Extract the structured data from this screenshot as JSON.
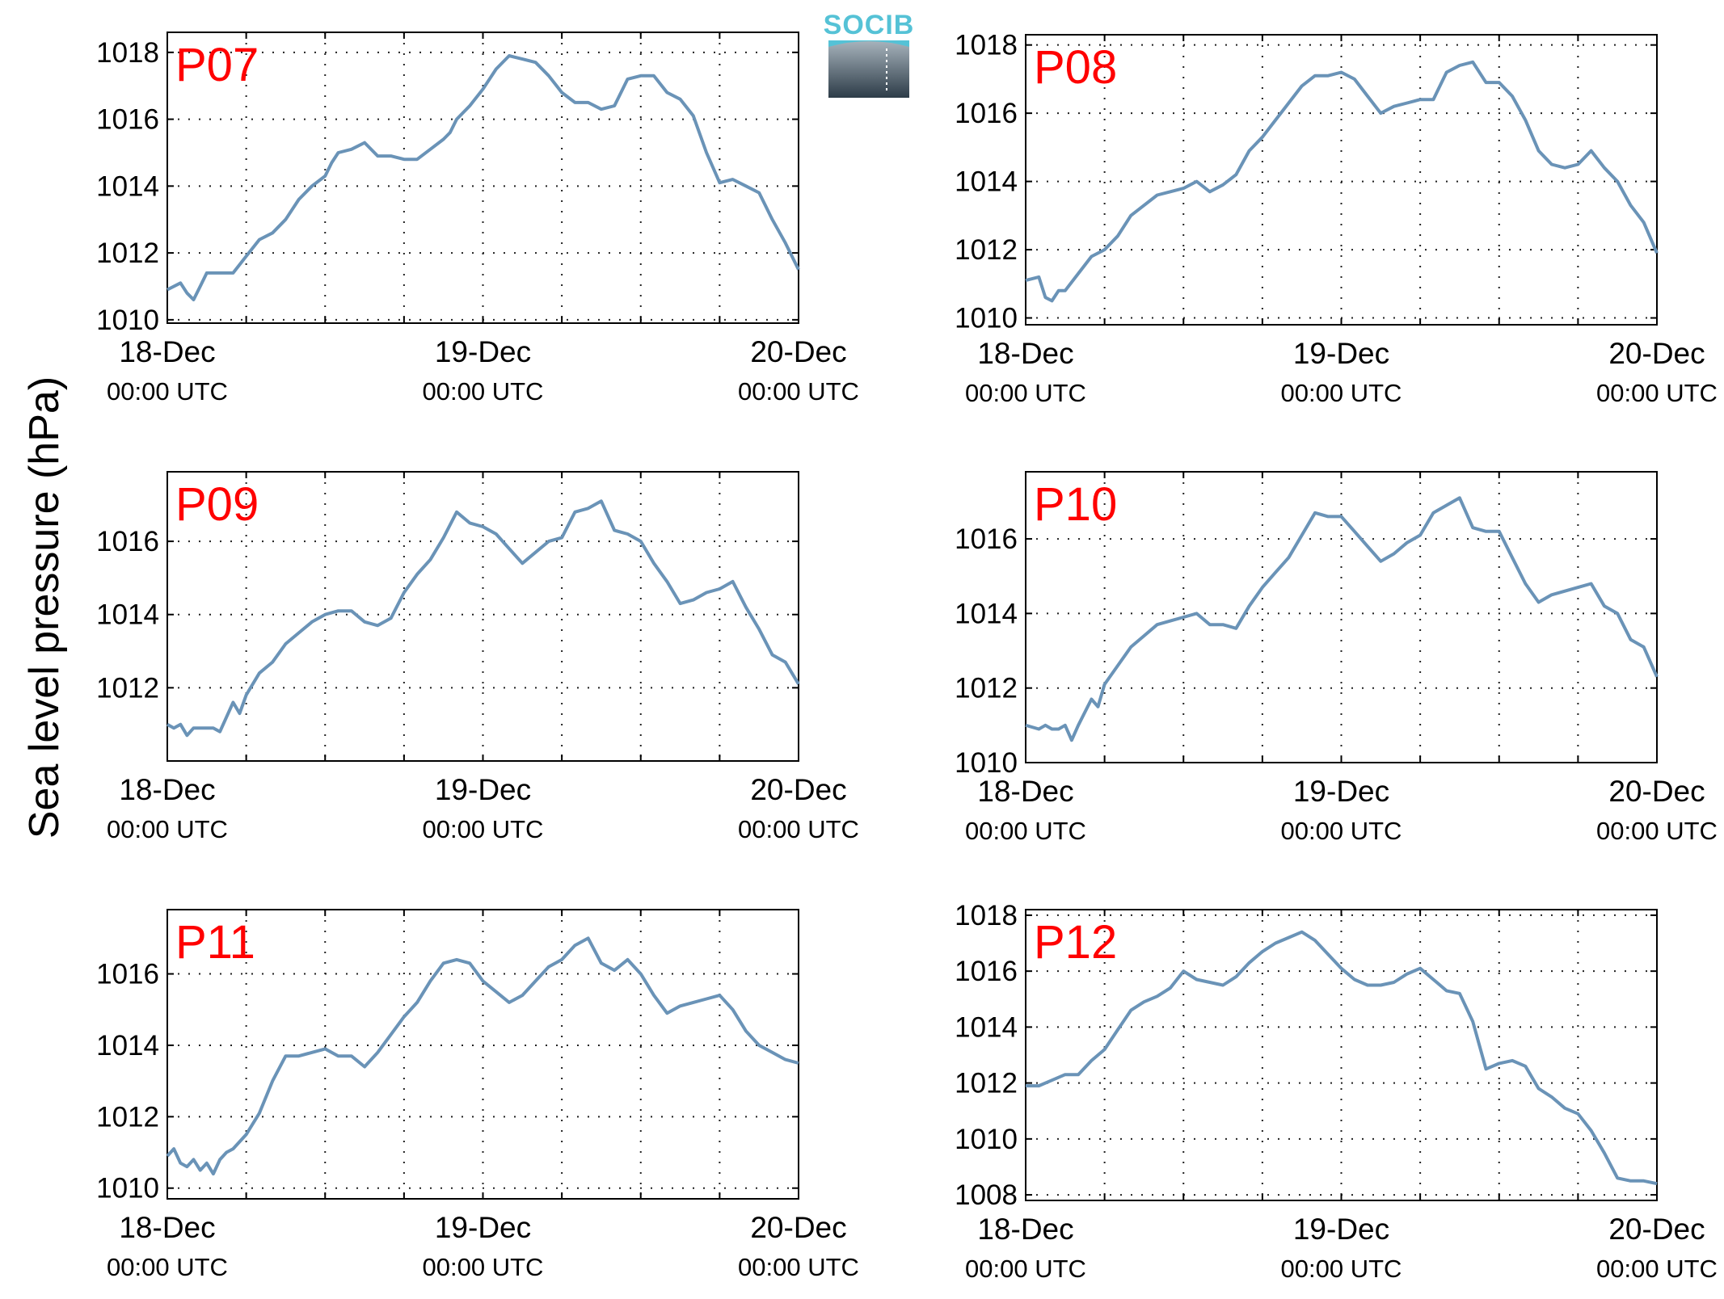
{
  "figure": {
    "ylabel": "Sea level pressure (hPa)",
    "logo_text": "SOCIB"
  },
  "chart_data": [
    {
      "type": "line",
      "title": "P07",
      "xlabel": "",
      "ylabel": "Sea level pressure (hPa)",
      "x_unit": "hours since 18-Dec 00:00 UTC",
      "x_ticks": [
        {
          "date": "18-Dec",
          "time": "00:00 UTC"
        },
        {
          "date": "19-Dec",
          "time": "00:00 UTC"
        },
        {
          "date": "20-Dec",
          "time": "00:00 UTC"
        }
      ],
      "xlim": [
        0,
        48
      ],
      "ylim": [
        1009.9,
        1018.6
      ],
      "yticks": [
        1010,
        1012,
        1014,
        1016,
        1018
      ],
      "grid": true,
      "color": "#6a93b7",
      "series": [
        {
          "x": [
            0,
            1,
            1.5,
            2,
            2.5,
            3,
            4,
            5,
            6,
            7,
            8,
            9,
            10,
            11,
            12,
            12.5,
            13,
            14,
            15,
            16,
            17,
            18,
            19,
            20,
            21,
            21.5,
            22,
            23,
            24,
            25,
            26,
            27,
            28,
            29,
            30,
            31,
            32,
            33,
            34,
            35,
            36,
            37,
            38,
            39,
            40,
            41,
            42,
            43,
            44,
            45,
            46,
            47,
            48
          ],
          "y": [
            1010.9,
            1011.1,
            1010.8,
            1010.6,
            1011.0,
            1011.4,
            1011.4,
            1011.4,
            1011.9,
            1012.4,
            1012.6,
            1013.0,
            1013.6,
            1014.0,
            1014.3,
            1014.7,
            1015.0,
            1015.1,
            1015.3,
            1014.9,
            1014.9,
            1014.8,
            1014.8,
            1015.1,
            1015.4,
            1015.6,
            1016.0,
            1016.4,
            1016.9,
            1017.5,
            1017.9,
            1017.8,
            1017.7,
            1017.3,
            1016.8,
            1016.5,
            1016.5,
            1016.3,
            1016.4,
            1017.2,
            1017.3,
            1017.3,
            1016.8,
            1016.6,
            1016.1,
            1015.0,
            1014.1,
            1014.2,
            1014.0,
            1013.8,
            1013.0,
            1012.3,
            1011.5
          ]
        }
      ]
    },
    {
      "type": "line",
      "title": "P08",
      "xlabel": "",
      "ylabel": "Sea level pressure (hPa)",
      "x_unit": "hours since 18-Dec 00:00 UTC",
      "x_ticks": [
        {
          "date": "18-Dec",
          "time": "00:00 UTC"
        },
        {
          "date": "19-Dec",
          "time": "00:00 UTC"
        },
        {
          "date": "20-Dec",
          "time": "00:00 UTC"
        }
      ],
      "xlim": [
        0,
        48
      ],
      "ylim": [
        1009.8,
        1018.3
      ],
      "yticks": [
        1010,
        1012,
        1014,
        1016,
        1018
      ],
      "grid": true,
      "color": "#6a93b7",
      "series": [
        {
          "x": [
            0,
            1,
            1.5,
            2,
            2.5,
            3,
            4,
            5,
            6,
            7,
            8,
            9,
            10,
            11,
            12,
            13,
            14,
            15,
            16,
            17,
            18,
            19,
            20,
            21,
            22,
            23,
            24,
            25,
            26,
            27,
            28,
            29,
            30,
            31,
            32,
            33,
            34,
            35,
            36,
            37,
            38,
            39,
            40,
            41,
            42,
            43,
            44,
            45,
            46,
            47,
            48
          ],
          "y": [
            1011.1,
            1011.2,
            1010.6,
            1010.5,
            1010.8,
            1010.8,
            1011.3,
            1011.8,
            1012.0,
            1012.4,
            1013.0,
            1013.3,
            1013.6,
            1013.7,
            1013.8,
            1014.0,
            1013.7,
            1013.9,
            1014.2,
            1014.9,
            1015.3,
            1015.8,
            1016.3,
            1016.8,
            1017.1,
            1017.1,
            1017.2,
            1017.0,
            1016.5,
            1016.0,
            1016.2,
            1016.3,
            1016.4,
            1016.4,
            1017.2,
            1017.4,
            1017.5,
            1016.9,
            1016.9,
            1016.5,
            1015.8,
            1014.9,
            1014.5,
            1014.4,
            1014.5,
            1014.9,
            1014.4,
            1014.0,
            1013.3,
            1012.8,
            1011.9
          ]
        }
      ]
    },
    {
      "type": "line",
      "title": "P09",
      "xlabel": "",
      "ylabel": "Sea level pressure (hPa)",
      "x_unit": "hours since 18-Dec 00:00 UTC",
      "x_ticks": [
        {
          "date": "18-Dec",
          "time": "00:00 UTC"
        },
        {
          "date": "19-Dec",
          "time": "00:00 UTC"
        },
        {
          "date": "20-Dec",
          "time": "00:00 UTC"
        }
      ],
      "xlim": [
        0,
        48
      ],
      "ylim": [
        1010.0,
        1017.9
      ],
      "yticks": [
        1012,
        1014,
        1016
      ],
      "grid": true,
      "color": "#6a93b7",
      "series": [
        {
          "x": [
            0,
            0.5,
            1,
            1.5,
            2,
            3,
            3.5,
            4,
            5,
            5.5,
            6,
            7,
            8,
            9,
            10,
            11,
            12,
            13,
            14,
            15,
            16,
            17,
            18,
            19,
            20,
            21,
            22,
            23,
            24,
            25,
            26,
            27,
            28,
            29,
            30,
            31,
            32,
            33,
            34,
            35,
            36,
            37,
            38,
            39,
            40,
            41,
            42,
            43,
            44,
            45,
            46,
            47,
            48
          ],
          "y": [
            1011.0,
            1010.9,
            1011.0,
            1010.7,
            1010.9,
            1010.9,
            1010.9,
            1010.8,
            1011.6,
            1011.3,
            1011.8,
            1012.4,
            1012.7,
            1013.2,
            1013.5,
            1013.8,
            1014.0,
            1014.1,
            1014.1,
            1013.8,
            1013.7,
            1013.9,
            1014.6,
            1015.1,
            1015.5,
            1016.1,
            1016.8,
            1016.5,
            1016.4,
            1016.2,
            1015.8,
            1015.4,
            1015.7,
            1016.0,
            1016.1,
            1016.8,
            1016.9,
            1017.1,
            1016.3,
            1016.2,
            1016.0,
            1015.4,
            1014.9,
            1014.3,
            1014.4,
            1014.6,
            1014.7,
            1014.9,
            1014.2,
            1013.6,
            1012.9,
            1012.7,
            1012.1
          ]
        }
      ]
    },
    {
      "type": "line",
      "title": "P10",
      "xlabel": "",
      "ylabel": "Sea level pressure (hPa)",
      "x_unit": "hours since 18-Dec 00:00 UTC",
      "x_ticks": [
        {
          "date": "18-Dec",
          "time": "00:00 UTC"
        },
        {
          "date": "19-Dec",
          "time": "00:00 UTC"
        },
        {
          "date": "20-Dec",
          "time": "00:00 UTC"
        }
      ],
      "xlim": [
        0,
        48
      ],
      "ylim": [
        1010.0,
        1017.8
      ],
      "yticks": [
        1010,
        1012,
        1014,
        1016
      ],
      "grid": true,
      "color": "#6a93b7",
      "series": [
        {
          "x": [
            0,
            1,
            1.5,
            2,
            2.5,
            3,
            3.5,
            4,
            5,
            5.5,
            6,
            7,
            8,
            9,
            10,
            11,
            12,
            13,
            14,
            15,
            16,
            17,
            18,
            19,
            20,
            21,
            22,
            23,
            24,
            25,
            26,
            27,
            28,
            29,
            30,
            31,
            32,
            33,
            34,
            35,
            36,
            37,
            38,
            39,
            40,
            41,
            42,
            43,
            44,
            45,
            46,
            47,
            48
          ],
          "y": [
            1011.0,
            1010.9,
            1011.0,
            1010.9,
            1010.9,
            1011.0,
            1010.6,
            1011.0,
            1011.7,
            1011.5,
            1012.1,
            1012.6,
            1013.1,
            1013.4,
            1013.7,
            1013.8,
            1013.9,
            1014.0,
            1013.7,
            1013.7,
            1013.6,
            1014.2,
            1014.7,
            1015.1,
            1015.5,
            1016.1,
            1016.7,
            1016.6,
            1016.6,
            1016.2,
            1015.8,
            1015.4,
            1015.6,
            1015.9,
            1016.1,
            1016.7,
            1016.9,
            1017.1,
            1016.3,
            1016.2,
            1016.2,
            1015.5,
            1014.8,
            1014.3,
            1014.5,
            1014.6,
            1014.7,
            1014.8,
            1014.2,
            1014.0,
            1013.3,
            1013.1,
            1012.3
          ]
        }
      ]
    },
    {
      "type": "line",
      "title": "P11",
      "xlabel": "",
      "ylabel": "Sea level pressure (hPa)",
      "x_unit": "hours since 18-Dec 00:00 UTC",
      "x_ticks": [
        {
          "date": "18-Dec",
          "time": "00:00 UTC"
        },
        {
          "date": "19-Dec",
          "time": "00:00 UTC"
        },
        {
          "date": "20-Dec",
          "time": "00:00 UTC"
        }
      ],
      "xlim": [
        0,
        48
      ],
      "ylim": [
        1009.7,
        1017.8
      ],
      "yticks": [
        1010,
        1012,
        1014,
        1016
      ],
      "grid": true,
      "color": "#6a93b7",
      "series": [
        {
          "x": [
            0,
            0.5,
            1,
            1.5,
            2,
            2.5,
            3,
            3.5,
            4,
            4.5,
            5,
            6,
            7,
            8,
            9,
            10,
            11,
            12,
            13,
            14,
            15,
            16,
            17,
            18,
            19,
            20,
            21,
            22,
            23,
            24,
            25,
            26,
            27,
            28,
            29,
            30,
            31,
            32,
            33,
            34,
            35,
            36,
            37,
            38,
            39,
            40,
            41,
            42,
            43,
            44,
            45,
            46,
            47,
            48
          ],
          "y": [
            1010.9,
            1011.1,
            1010.7,
            1010.6,
            1010.8,
            1010.5,
            1010.7,
            1010.4,
            1010.8,
            1011.0,
            1011.1,
            1011.5,
            1012.1,
            1013.0,
            1013.7,
            1013.7,
            1013.8,
            1013.9,
            1013.7,
            1013.7,
            1013.4,
            1013.8,
            1014.3,
            1014.8,
            1015.2,
            1015.8,
            1016.3,
            1016.4,
            1016.3,
            1015.8,
            1015.5,
            1015.2,
            1015.4,
            1015.8,
            1016.2,
            1016.4,
            1016.8,
            1017.0,
            1016.3,
            1016.1,
            1016.4,
            1016.0,
            1015.4,
            1014.9,
            1015.1,
            1015.2,
            1015.3,
            1015.4,
            1015.0,
            1014.4,
            1014.0,
            1013.8,
            1013.6,
            1013.5
          ]
        }
      ]
    },
    {
      "type": "line",
      "title": "P12",
      "xlabel": "",
      "ylabel": "Sea level pressure (hPa)",
      "x_unit": "hours since 18-Dec 00:00 UTC",
      "x_ticks": [
        {
          "date": "18-Dec",
          "time": "00:00 UTC"
        },
        {
          "date": "19-Dec",
          "time": "00:00 UTC"
        },
        {
          "date": "20-Dec",
          "time": "00:00 UTC"
        }
      ],
      "xlim": [
        0,
        48
      ],
      "ylim": [
        1007.8,
        1018.2
      ],
      "yticks": [
        1008,
        1010,
        1012,
        1014,
        1016,
        1018
      ],
      "grid": true,
      "color": "#6a93b7",
      "series": [
        {
          "x": [
            0,
            1,
            2,
            3,
            4,
            5,
            6,
            7,
            8,
            9,
            10,
            11,
            12,
            13,
            14,
            15,
            16,
            17,
            18,
            19,
            20,
            21,
            22,
            23,
            24,
            25,
            26,
            27,
            28,
            29,
            30,
            31,
            32,
            33,
            34,
            35,
            36,
            37,
            38,
            39,
            40,
            41,
            42,
            43,
            44,
            45,
            46,
            47,
            48
          ],
          "y": [
            1011.9,
            1011.9,
            1012.1,
            1012.3,
            1012.3,
            1012.8,
            1013.2,
            1013.9,
            1014.6,
            1014.9,
            1015.1,
            1015.4,
            1016.0,
            1015.7,
            1015.6,
            1015.5,
            1015.8,
            1016.3,
            1016.7,
            1017.0,
            1017.2,
            1017.4,
            1017.1,
            1016.6,
            1016.1,
            1015.7,
            1015.5,
            1015.5,
            1015.6,
            1015.9,
            1016.1,
            1015.7,
            1015.3,
            1015.2,
            1014.2,
            1012.5,
            1012.7,
            1012.8,
            1012.6,
            1011.8,
            1011.5,
            1011.1,
            1010.9,
            1010.3,
            1009.5,
            1008.6,
            1008.5,
            1008.5,
            1008.4
          ]
        }
      ]
    }
  ]
}
